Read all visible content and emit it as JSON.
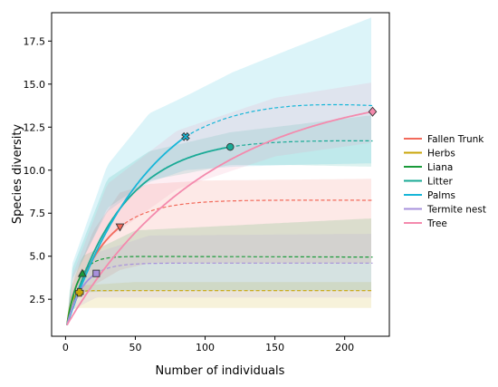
{
  "chart_data": {
    "type": "line",
    "title": "",
    "xlabel": "Number of individuals",
    "ylabel": "Species diversity",
    "xlim": [
      -10,
      232
    ],
    "ylim": [
      0.35,
      19.15
    ],
    "xticks": [
      0,
      50,
      100,
      150,
      200
    ],
    "yticks": [
      2.5,
      5.0,
      7.5,
      10.0,
      12.5,
      15.0,
      17.5
    ],
    "ytick_labels": [
      "2.5",
      "5.0",
      "7.5",
      "10.0",
      "12.5",
      "15.0",
      "17.5"
    ],
    "legend_position": "right",
    "grid": false,
    "series": [
      {
        "name": "Fallen Trunk",
        "color": "#f26a5b",
        "marker": "triangle-down",
        "observed_n": 39,
        "observed_value": 6.7,
        "asymptote": 8.3,
        "end_value": 8.25,
        "ci_band_rarefaction": [
          [
            5,
            2.3,
            3.4
          ],
          [
            20,
            3.3,
            6.5
          ],
          [
            39,
            4.2,
            8.7
          ]
        ],
        "ci_band_extrapolation": [
          [
            39,
            4.2,
            8.7
          ],
          [
            60,
            4.6,
            9.2
          ],
          [
            100,
            4.6,
            9.4
          ],
          [
            220,
            4.6,
            9.5
          ]
        ]
      },
      {
        "name": "Herbs",
        "color": "#c9a60a",
        "marker": "plus",
        "observed_n": 10,
        "observed_value": 2.9,
        "asymptote": 3.0,
        "end_value": 3.0,
        "ci_band_rarefaction": [
          [
            3,
            1.9,
            2.6
          ],
          [
            10,
            2.0,
            3.3
          ]
        ],
        "ci_band_extrapolation": [
          [
            10,
            2.0,
            3.3
          ],
          [
            50,
            2.0,
            3.5
          ],
          [
            220,
            2.0,
            3.5
          ]
        ]
      },
      {
        "name": "Liana",
        "color": "#1a9a3a",
        "marker": "triangle-up",
        "observed_n": 12,
        "observed_value": 4.0,
        "asymptote": 5.0,
        "end_value": 4.95,
        "ci_band_rarefaction": [
          [
            3,
            2.0,
            3.0
          ],
          [
            12,
            2.9,
            5.0
          ]
        ],
        "ci_band_extrapolation": [
          [
            12,
            2.9,
            5.0
          ],
          [
            50,
            3.0,
            6.5
          ],
          [
            220,
            3.0,
            7.2
          ]
        ]
      },
      {
        "name": "Litter",
        "color": "#1aaa96",
        "marker": "circle",
        "observed_n": 118,
        "observed_value": 11.35,
        "asymptote": 11.9,
        "end_value": 11.7,
        "ci_band_rarefaction": [
          [
            5,
            3.5,
            4.3
          ],
          [
            30,
            7.8,
            9.5
          ],
          [
            60,
            9.4,
            11.1
          ],
          [
            118,
            10.3,
            12.2
          ]
        ],
        "ci_band_extrapolation": [
          [
            118,
            10.3,
            12.2
          ],
          [
            160,
            10.3,
            12.6
          ],
          [
            220,
            10.2,
            13.2
          ]
        ]
      },
      {
        "name": "Palms",
        "color": "#17b6d8",
        "marker": "x",
        "observed_n": 86,
        "observed_value": 11.95,
        "asymptote": 15.5,
        "end_value": 13.75,
        "ci_band_rarefaction": [
          [
            5,
            3.7,
            4.6
          ],
          [
            30,
            7.6,
            10.3
          ],
          [
            60,
            9.3,
            13.3
          ],
          [
            86,
            10.0,
            14.3
          ]
        ],
        "ci_band_extrapolation": [
          [
            86,
            10.0,
            14.3
          ],
          [
            120,
            10.2,
            15.7
          ],
          [
            160,
            10.3,
            17.0
          ],
          [
            220,
            10.4,
            18.9
          ]
        ]
      },
      {
        "name": "Termite nest",
        "color": "#a791dc",
        "marker": "square",
        "observed_n": 22,
        "observed_value": 4.0,
        "asymptote": 4.6,
        "end_value": 4.6,
        "ci_band_rarefaction": [
          [
            3,
            1.8,
            2.7
          ],
          [
            22,
            2.6,
            5.2
          ]
        ],
        "ci_band_extrapolation": [
          [
            22,
            2.6,
            5.2
          ],
          [
            60,
            2.6,
            6.2
          ],
          [
            220,
            2.6,
            6.3
          ]
        ]
      },
      {
        "name": "Tree",
        "color": "#f48aad",
        "marker": "diamond",
        "observed_n": 220,
        "observed_value": 13.4,
        "asymptote": 15.0,
        "end_value": 13.4,
        "ci_band_rarefaction": [
          [
            5,
            2.6,
            3.9
          ],
          [
            30,
            6.0,
            9.2
          ],
          [
            80,
            8.9,
            12.3
          ],
          [
            150,
            10.8,
            14.2
          ],
          [
            220,
            11.6,
            15.1
          ]
        ],
        "ci_band_extrapolation": []
      }
    ]
  }
}
